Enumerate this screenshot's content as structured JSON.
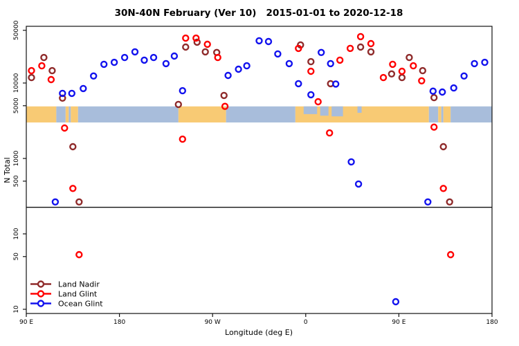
{
  "chart_data": {
    "type": "scatter",
    "title": "30N-40N February (Ver 10)   2015-01-01 to 2020-12-18",
    "xlabel": "Longitude (deg E)",
    "ylabel": "N Total",
    "x_axis": {
      "start_deg": 90,
      "end_deg": 540,
      "ticks": [
        {
          "deg": 90,
          "label": "90 E"
        },
        {
          "deg": 180,
          "label": "180"
        },
        {
          "deg": 270,
          "label": "90 W"
        },
        {
          "deg": 360,
          "label": "0"
        },
        {
          "deg": 450,
          "label": "90 E"
        },
        {
          "deg": 540,
          "label": "180"
        }
      ]
    },
    "y_axis": {
      "scale": "log",
      "lim": [
        8.8,
        56500
      ],
      "ticks": [
        10,
        50,
        100,
        500,
        1000,
        5000,
        10000,
        50000
      ]
    },
    "separator_value": 225,
    "map_band": {
      "value_range": [
        3000,
        4900
      ],
      "land_color": "#F8CA74",
      "ocean_color": "#A8BDDB",
      "segments": [
        {
          "from": 90,
          "to": 119,
          "type": "land"
        },
        {
          "from": 119,
          "to": 128,
          "type": "ocean"
        },
        {
          "from": 128,
          "to": 131,
          "type": "land"
        },
        {
          "from": 131,
          "to": 133,
          "type": "ocean"
        },
        {
          "from": 133,
          "to": 140,
          "type": "land"
        },
        {
          "from": 140,
          "to": 237,
          "type": "ocean"
        },
        {
          "from": 237,
          "to": 283,
          "type": "land"
        },
        {
          "from": 283,
          "to": 350,
          "type": "ocean"
        },
        {
          "from": 350,
          "to": 479,
          "type": "land"
        },
        {
          "from": 479,
          "to": 488,
          "type": "ocean"
        },
        {
          "from": 488,
          "to": 491,
          "type": "land"
        },
        {
          "from": 491,
          "to": 493,
          "type": "ocean"
        },
        {
          "from": 493,
          "to": 500,
          "type": "land"
        },
        {
          "from": 500,
          "to": 540,
          "type": "ocean"
        }
      ],
      "ocean_overlays": [
        {
          "from": 358,
          "to": 371,
          "frac": 0.48
        },
        {
          "from": 374,
          "to": 382,
          "frac": 0.58
        },
        {
          "from": 385,
          "to": 396,
          "frac": 0.62
        },
        {
          "from": 410,
          "to": 414,
          "frac": 0.4
        }
      ]
    },
    "series": [
      {
        "name": "Land Nadir",
        "color": "#8F2B2B",
        "points": [
          [
            95,
            11800
          ],
          [
            107,
            21800
          ],
          [
            115,
            14600
          ],
          [
            125,
            6300
          ],
          [
            135,
            1430
          ],
          [
            141,
            265
          ],
          [
            237,
            5200
          ],
          [
            244,
            30000
          ],
          [
            255,
            34800
          ],
          [
            263,
            25900
          ],
          [
            274,
            25400
          ],
          [
            281,
            6840
          ],
          [
            355,
            32000
          ],
          [
            365,
            19200
          ],
          [
            384,
            9800
          ],
          [
            413,
            30000
          ],
          [
            423,
            25900
          ],
          [
            443,
            13200
          ],
          [
            453,
            11800
          ],
          [
            460,
            21800
          ],
          [
            473,
            14600
          ],
          [
            484,
            6400
          ],
          [
            493,
            1430
          ],
          [
            499,
            265
          ]
        ]
      },
      {
        "name": "Land Glint",
        "color": "#FF0000",
        "points": [
          [
            95,
            14600
          ],
          [
            105,
            16900
          ],
          [
            114,
            11100
          ],
          [
            127,
            2530
          ],
          [
            135,
            400
          ],
          [
            141,
            53
          ],
          [
            241,
            1800
          ],
          [
            244,
            39400
          ],
          [
            254,
            39400
          ],
          [
            265,
            32600
          ],
          [
            275,
            21800
          ],
          [
            282,
            4900
          ],
          [
            353,
            28800
          ],
          [
            365,
            14300
          ],
          [
            372,
            5650
          ],
          [
            383,
            2180
          ],
          [
            393,
            20100
          ],
          [
            403,
            28800
          ],
          [
            413,
            41200
          ],
          [
            423,
            33300
          ],
          [
            435,
            11800
          ],
          [
            444,
            17700
          ],
          [
            453,
            14300
          ],
          [
            464,
            16900
          ],
          [
            472,
            10700
          ],
          [
            484,
            2600
          ],
          [
            493,
            400
          ],
          [
            500,
            53
          ]
        ]
      },
      {
        "name": "Ocean Glint",
        "color": "#1212EE",
        "points": [
          [
            118,
            265
          ],
          [
            125,
            7300
          ],
          [
            134,
            7300
          ],
          [
            145,
            8450
          ],
          [
            155,
            12400
          ],
          [
            165,
            17700
          ],
          [
            175,
            18800
          ],
          [
            185,
            21800
          ],
          [
            195,
            25900
          ],
          [
            204,
            20100
          ],
          [
            213,
            21800
          ],
          [
            225,
            18100
          ],
          [
            233,
            22800
          ],
          [
            241,
            7900
          ],
          [
            285,
            12600
          ],
          [
            295,
            15250
          ],
          [
            303,
            16900
          ],
          [
            315,
            36300
          ],
          [
            324,
            35500
          ],
          [
            333,
            24300
          ],
          [
            344,
            18100
          ],
          [
            353,
            9800
          ],
          [
            365,
            7000
          ],
          [
            375,
            25400
          ],
          [
            384,
            18100
          ],
          [
            389,
            9700
          ],
          [
            404,
            900
          ],
          [
            411,
            458
          ],
          [
            447,
            12.6
          ],
          [
            478,
            265
          ],
          [
            483,
            7800
          ],
          [
            492,
            7600
          ],
          [
            503,
            8600
          ],
          [
            513,
            12400
          ],
          [
            523,
            18100
          ],
          [
            533,
            18800
          ]
        ]
      }
    ]
  }
}
